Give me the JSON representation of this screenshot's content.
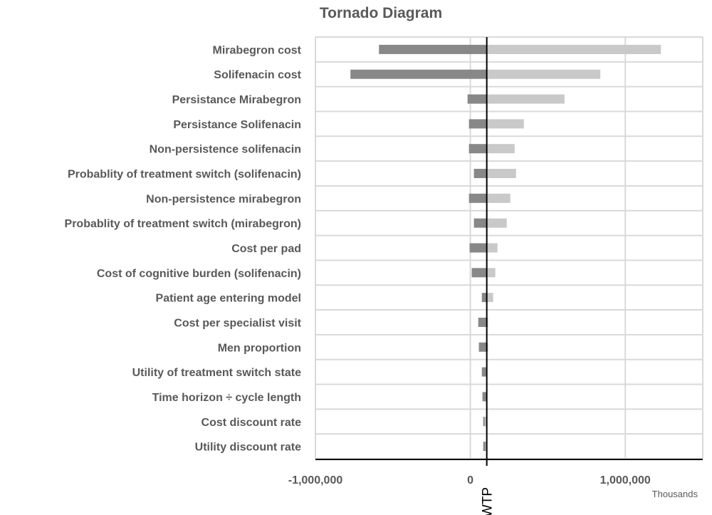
{
  "chart_data": {
    "type": "bar",
    "orientation": "horizontal",
    "title": "Tornado Diagram",
    "xlabel": "",
    "units_label": "Thousands",
    "reference_line": {
      "label": "WTP",
      "value": 106000
    },
    "xlim": [
      -1000000,
      1500000
    ],
    "xticks": [
      -1000000,
      0,
      1000000
    ],
    "xtick_labels": [
      "-1,000,000",
      "0",
      "1,000,000"
    ],
    "grid": true,
    "colors": {
      "low": "#888888",
      "high": "#c9c9c9",
      "reference": "#000000"
    },
    "categories": [
      "Mirabegron cost",
      "Solifenacin cost",
      "Persistance Mirabegron",
      "Persistance Solifenacin",
      "Non-persistence solifenacin",
      "Probablity of treatment switch (solifenacin)",
      "Non-persistence mirabegron",
      "Probablity of treatment switch (mirabegron)",
      "Cost per pad",
      "Cost of cognitive burden (solifenacin)",
      "Patient age entering model",
      "Cost per specialist visit",
      "Men proportion",
      "Utility of treatment switch state",
      "Time horizon ÷ cycle length",
      "Cost discount rate",
      "Utility discount rate"
    ],
    "series": [
      {
        "name": "Low",
        "values": [
          -590000,
          -774000,
          -18000,
          -9000,
          -9000,
          23000,
          -9000,
          23000,
          -5000,
          9000,
          74000,
          51000,
          55000,
          74000,
          78000,
          83000,
          83000
        ]
      },
      {
        "name": "High",
        "values": [
          1230000,
          839000,
          608000,
          345000,
          286000,
          295000,
          258000,
          235000,
          175000,
          161000,
          147000,
          115000,
          115000,
          101000,
          101000,
          92000,
          97000
        ]
      }
    ]
  }
}
